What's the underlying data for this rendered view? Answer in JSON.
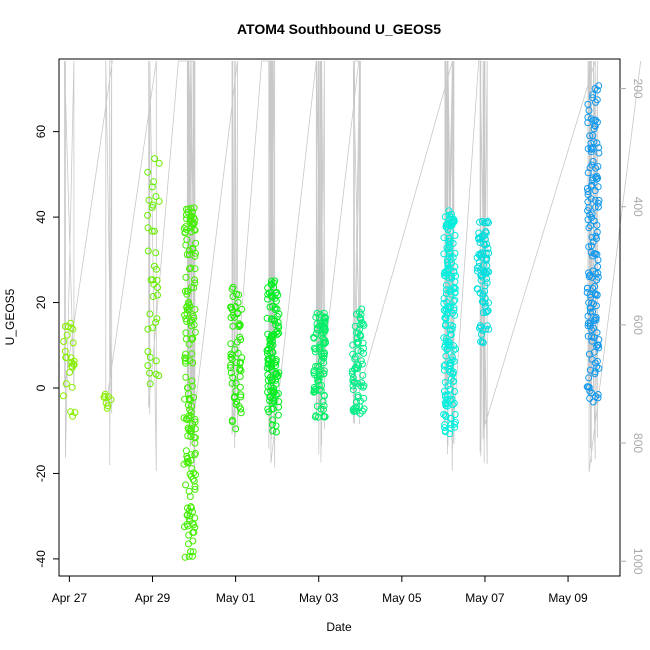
{
  "chart_data": {
    "type": "scatter",
    "title": "ATOM4 Southbound U_GEOS5",
    "xlabel": "Date",
    "ylabel": "U_GEOS5",
    "x_ticks": [
      {
        "day": 0,
        "label": "Apr 27"
      },
      {
        "day": 2,
        "label": "Apr 29"
      },
      {
        "day": 4,
        "label": "May 01"
      },
      {
        "day": 6,
        "label": "May 03"
      },
      {
        "day": 8,
        "label": "May 05"
      },
      {
        "day": 10,
        "label": "May 07"
      },
      {
        "day": 12,
        "label": "May 09"
      }
    ],
    "xlim": [
      "Apr 26 18:00",
      "May 10 06:00"
    ],
    "y_ticks": [
      -40,
      -20,
      0,
      20,
      40,
      60
    ],
    "ylim": [
      -44,
      77
    ],
    "right_axis": {
      "label_ticks": [
        200,
        400,
        600,
        800,
        1000
      ],
      "range": [
        150,
        1025
      ],
      "inverted": true,
      "color": "#aaaaaa"
    },
    "grid": false,
    "legend": "none",
    "marker": "open-circle",
    "colors": {
      "line": "#c8c8c8",
      "axis": "#000000",
      "right_axis": "#aaaaaa"
    },
    "series": [
      {
        "day_center": 0.0,
        "color": "#88ee00",
        "min": -7.5,
        "max": 16.8,
        "count": 26
      },
      {
        "day_center": 0.95,
        "color": "#88ee00",
        "min": -5,
        "max": -1,
        "count": 8
      },
      {
        "day_center": 2.02,
        "color": "#66ee00",
        "min": 0.5,
        "max": 55.8,
        "count": 38
      },
      {
        "day_center": 2.9,
        "color": "#44ee00",
        "min": -40,
        "max": 43,
        "count": 170
      },
      {
        "day_center": 4.02,
        "color": "#22ee00",
        "min": -10,
        "max": 24.5,
        "count": 60
      },
      {
        "day_center": 4.9,
        "color": "#00ee22",
        "min": -10.5,
        "max": 25.5,
        "count": 120
      },
      {
        "day_center": 6.02,
        "color": "#00ee66",
        "min": -7.5,
        "max": 17.8,
        "count": 90
      },
      {
        "day_center": 6.95,
        "color": "#00ee88",
        "min": -7,
        "max": 18.5,
        "count": 70
      },
      {
        "day_center": 9.15,
        "color": "#00eedd",
        "min": -11,
        "max": 41.5,
        "count": 170
      },
      {
        "day_center": 9.95,
        "color": "#00dddd",
        "min": 10.5,
        "max": 39.5,
        "count": 80
      },
      {
        "day_center": 12.6,
        "color": "#1199ee",
        "min": -4,
        "max": 72,
        "count": 150
      }
    ]
  }
}
